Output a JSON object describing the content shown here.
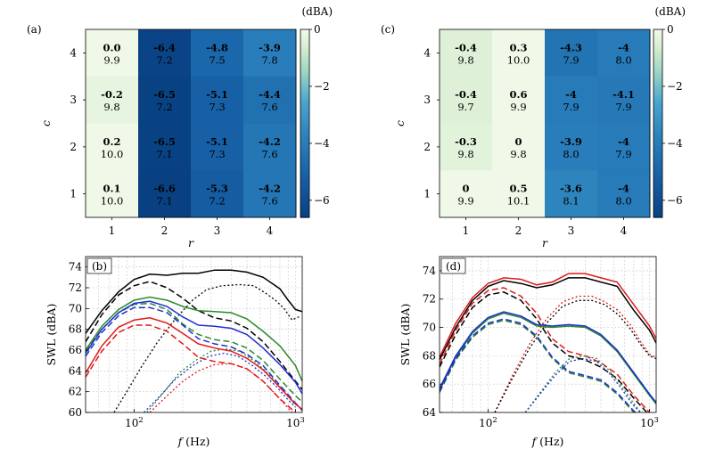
{
  "chart_data": [
    {
      "panel": "(a)",
      "type": "heatmap",
      "xlabel": "r",
      "ylabel": "c",
      "x": [
        1,
        2,
        3,
        4
      ],
      "y": [
        4,
        3,
        2,
        1
      ],
      "unit_label": "(dBA)",
      "colorbar": {
        "ticks": [
          0,
          -2,
          -4,
          -6
        ],
        "range": [
          -6.6,
          0
        ]
      },
      "values": [
        [
          0.0,
          -6.4,
          -4.8,
          -3.9
        ],
        [
          -0.2,
          -6.5,
          -5.1,
          -4.4
        ],
        [
          0.2,
          -6.5,
          -5.1,
          -4.2
        ],
        [
          0.1,
          -6.6,
          -5.3,
          -4.2
        ]
      ],
      "value_labels": [
        [
          "0.0",
          "-6.4",
          "-4.8",
          "-3.9"
        ],
        [
          "-0.2",
          "-6.5",
          "-5.1",
          "-4.4"
        ],
        [
          "0.2",
          "-6.5",
          "-5.1",
          "-4.2"
        ],
        [
          "0.1",
          "-6.6",
          "-5.3",
          "-4.2"
        ]
      ],
      "sub_labels": [
        [
          "9.9",
          "7.2",
          "7.5",
          "7.8"
        ],
        [
          "9.8",
          "7.2",
          "7.3",
          "7.6"
        ],
        [
          "10.0",
          "7.1",
          "7.3",
          "7.6"
        ],
        [
          "10.0",
          "7.1",
          "7.2",
          "7.6"
        ]
      ]
    },
    {
      "panel": "(c)",
      "type": "heatmap",
      "xlabel": "r",
      "ylabel": "c",
      "x": [
        1,
        2,
        3,
        4
      ],
      "y": [
        4,
        3,
        2,
        1
      ],
      "unit_label": "(dBA)",
      "colorbar": {
        "ticks": [
          0,
          -2,
          -4,
          -6
        ],
        "range": [
          -6.6,
          0
        ]
      },
      "values": [
        [
          -0.4,
          0.3,
          -4.3,
          -4
        ],
        [
          -0.4,
          0.6,
          -4,
          -4.1
        ],
        [
          -0.3,
          0,
          -3.9,
          -4
        ],
        [
          0,
          0.5,
          -3.6,
          -4
        ]
      ],
      "value_labels": [
        [
          "-0.4",
          "0.3",
          "-4.3",
          "-4"
        ],
        [
          "-0.4",
          "0.6",
          "-4",
          "-4.1"
        ],
        [
          "-0.3",
          "0",
          "-3.9",
          "-4"
        ],
        [
          "0",
          "0.5",
          "-3.6",
          "-4"
        ]
      ],
      "sub_labels": [
        [
          "9.8",
          "10.0",
          "7.9",
          "8.0"
        ],
        [
          "9.7",
          "9.9",
          "7.9",
          "7.9"
        ],
        [
          "9.8",
          "9.8",
          "8.0",
          "7.9"
        ],
        [
          "9.9",
          "10.1",
          "8.1",
          "8.0"
        ]
      ]
    },
    {
      "panel": "(b)",
      "type": "line",
      "xlabel": "f (Hz)",
      "ylabel": "SWL (dBA)",
      "xscale": "log",
      "xlim": [
        50,
        1100
      ],
      "ylim": [
        60,
        75
      ],
      "xticks": [
        "10^2",
        "10^3"
      ],
      "yticks": [
        60,
        62,
        64,
        66,
        68,
        70,
        72,
        74
      ],
      "grid": true,
      "series": [
        {
          "color": "#000000",
          "dash": "solid",
          "x": [
            50,
            63,
            80,
            100,
            125,
            160,
            200,
            250,
            315,
            400,
            500,
            630,
            800,
            900,
            1000,
            1100
          ],
          "y": [
            67.6,
            69.8,
            71.6,
            72.8,
            73.3,
            73.2,
            73.4,
            73.4,
            73.7,
            73.7,
            73.5,
            73.0,
            71.9,
            70.8,
            69.9,
            69.7
          ]
        },
        {
          "color": "#000000",
          "dash": "dashed",
          "x": [
            50,
            63,
            80,
            100,
            125,
            160,
            200,
            250,
            315,
            400,
            500,
            630,
            800,
            1000,
            1100
          ],
          "y": [
            66.8,
            69.4,
            71.3,
            72.2,
            72.6,
            72.0,
            71.0,
            69.8,
            69.1,
            68.8,
            68.1,
            66.8,
            64.9,
            63.0,
            62.2
          ]
        },
        {
          "color": "#000000",
          "dash": "dotted",
          "x": [
            75,
            90,
            110,
            140,
            180,
            230,
            280,
            350,
            450,
            550,
            650,
            750,
            850,
            950,
            1050
          ],
          "y": [
            60.0,
            62.0,
            64.3,
            66.8,
            69.0,
            70.8,
            71.8,
            72.2,
            72.3,
            72.2,
            71.5,
            70.8,
            70.0,
            68.9,
            69.2
          ]
        },
        {
          "color": "#2a8a2a",
          "dash": "solid",
          "x": [
            50,
            63,
            80,
            100,
            125,
            160,
            200,
            250,
            315,
            400,
            500,
            630,
            800,
            1000,
            1100
          ],
          "y": [
            66.0,
            68.3,
            69.9,
            70.8,
            71.1,
            70.8,
            70.2,
            69.8,
            69.7,
            69.6,
            69.0,
            67.8,
            66.4,
            64.5,
            63.0
          ]
        },
        {
          "color": "#2a8a2a",
          "dash": "dashed",
          "x": [
            50,
            63,
            80,
            100,
            125,
            160,
            200,
            250,
            315,
            400,
            500,
            630,
            800,
            1000,
            1100
          ],
          "y": [
            65.9,
            68.0,
            69.6,
            70.4,
            70.5,
            69.9,
            68.5,
            67.5,
            67.0,
            66.8,
            66.2,
            65.0,
            63.2,
            61.6,
            61.0
          ]
        },
        {
          "color": "#2a8a2a",
          "dash": "dotted",
          "x": [
            120,
            150,
            190,
            240,
            300,
            370,
            450,
            550,
            650,
            750,
            900,
            1000
          ],
          "y": [
            60.0,
            61.8,
            63.8,
            65.0,
            65.9,
            66.1,
            65.9,
            65.0,
            64.0,
            63.0,
            61.5,
            60.7
          ]
        },
        {
          "color": "#1f2fd0",
          "dash": "solid",
          "x": [
            50,
            63,
            80,
            100,
            125,
            160,
            200,
            250,
            315,
            400,
            500,
            630,
            800,
            1000,
            1100
          ],
          "y": [
            65.7,
            68.0,
            69.6,
            70.5,
            70.7,
            70.2,
            69.2,
            68.4,
            68.3,
            68.1,
            67.5,
            66.2,
            64.6,
            62.9,
            61.8
          ]
        },
        {
          "color": "#1f2fd0",
          "dash": "dashed",
          "x": [
            50,
            63,
            80,
            100,
            125,
            160,
            200,
            250,
            315,
            400,
            500,
            630,
            800,
            1000,
            1100
          ],
          "y": [
            65.4,
            67.7,
            69.3,
            70.1,
            70.1,
            69.6,
            68.4,
            67.1,
            66.6,
            66.3,
            65.6,
            64.5,
            62.6,
            60.9,
            60.2
          ]
        },
        {
          "color": "#1f2fd0",
          "dash": "dotted",
          "x": [
            115,
            145,
            180,
            230,
            290,
            360,
            440,
            530,
            640,
            760,
            900,
            1000
          ],
          "y": [
            60.0,
            61.6,
            63.2,
            64.5,
            65.4,
            65.7,
            65.4,
            64.6,
            63.6,
            62.5,
            61.2,
            60.5
          ]
        },
        {
          "color": "#e01a1a",
          "dash": "solid",
          "x": [
            50,
            63,
            80,
            100,
            125,
            160,
            200,
            250,
            315,
            400,
            500,
            630,
            800,
            1000,
            1100
          ],
          "y": [
            63.8,
            66.4,
            68.2,
            68.9,
            69.1,
            68.6,
            67.6,
            66.6,
            66.2,
            65.9,
            65.2,
            64.1,
            62.4,
            60.8,
            60.3
          ]
        },
        {
          "color": "#e01a1a",
          "dash": "dashed",
          "x": [
            50,
            63,
            80,
            100,
            125,
            160,
            200,
            250,
            315,
            400,
            500,
            630,
            800,
            1000
          ],
          "y": [
            63.4,
            65.9,
            67.7,
            68.4,
            68.4,
            67.8,
            66.6,
            65.3,
            64.9,
            64.7,
            64.2,
            63.0,
            61.3,
            60.0
          ]
        },
        {
          "color": "#e01a1a",
          "dash": "dotted",
          "x": [
            125,
            160,
            200,
            250,
            315,
            400,
            500,
            630,
            800,
            950
          ],
          "y": [
            60.0,
            61.6,
            63.0,
            64.0,
            64.6,
            64.7,
            64.2,
            63.0,
            61.3,
            60.0
          ]
        }
      ]
    },
    {
      "panel": "(d)",
      "type": "line",
      "xlabel": "f (Hz)",
      "ylabel": "SWL (dBA)",
      "xscale": "log",
      "xlim": [
        50,
        1100
      ],
      "ylim": [
        64,
        75
      ],
      "xticks": [
        "10^2",
        "10^3"
      ],
      "yticks": [
        64,
        66,
        68,
        70,
        72,
        74
      ],
      "grid": true,
      "series": [
        {
          "color": "#e01a1a",
          "dash": "solid",
          "x": [
            50,
            63,
            80,
            100,
            125,
            160,
            200,
            250,
            315,
            400,
            500,
            630,
            800,
            1000,
            1100
          ],
          "y": [
            67.9,
            70.3,
            72.1,
            73.1,
            73.5,
            73.4,
            73.0,
            73.2,
            73.8,
            73.8,
            73.5,
            73.2,
            71.6,
            70.1,
            69.2
          ]
        },
        {
          "color": "#000000",
          "dash": "solid",
          "x": [
            50,
            63,
            80,
            100,
            125,
            160,
            200,
            250,
            315,
            400,
            500,
            630,
            800,
            1000,
            1100
          ],
          "y": [
            67.7,
            70.0,
            71.9,
            72.9,
            73.3,
            73.1,
            72.8,
            73.0,
            73.5,
            73.5,
            73.2,
            72.9,
            71.2,
            69.8,
            68.9
          ]
        },
        {
          "color": "#e01a1a",
          "dash": "dashed",
          "x": [
            50,
            63,
            80,
            100,
            125,
            160,
            200,
            250,
            315,
            400,
            500,
            630,
            800,
            1000
          ],
          "y": [
            67.4,
            69.8,
            71.7,
            72.6,
            72.8,
            72.2,
            71.0,
            69.2,
            68.3,
            68.0,
            67.5,
            66.7,
            65.2,
            64.0
          ]
        },
        {
          "color": "#000000",
          "dash": "dashed",
          "x": [
            50,
            63,
            80,
            100,
            125,
            160,
            200,
            250,
            315,
            400,
            500,
            630,
            800,
            1000
          ],
          "y": [
            67.2,
            69.5,
            71.4,
            72.3,
            72.5,
            71.9,
            70.6,
            68.9,
            68.0,
            67.7,
            67.2,
            66.4,
            65.0,
            63.8
          ]
        },
        {
          "color": "#e01a1a",
          "dash": "dotted",
          "x": [
            110,
            140,
            180,
            230,
            290,
            360,
            440,
            530,
            640,
            760,
            880,
            1000,
            1100
          ],
          "y": [
            64.0,
            66.5,
            68.8,
            70.6,
            71.8,
            72.2,
            72.2,
            71.8,
            71.2,
            70.2,
            69.0,
            68.1,
            67.9
          ]
        },
        {
          "color": "#000000",
          "dash": "dotted",
          "x": [
            110,
            140,
            180,
            230,
            290,
            360,
            440,
            530,
            640,
            760,
            880,
            1000,
            1100
          ],
          "y": [
            64.0,
            66.3,
            68.5,
            70.3,
            71.5,
            71.9,
            71.9,
            71.6,
            70.9,
            69.9,
            68.8,
            68.0,
            67.8
          ]
        },
        {
          "color": "#2a8a2a",
          "dash": "solid",
          "x": [
            50,
            63,
            80,
            100,
            125,
            160,
            200,
            250,
            315,
            400,
            500,
            630,
            800,
            1000,
            1100
          ],
          "y": [
            65.6,
            67.9,
            69.6,
            70.6,
            71.0,
            70.7,
            70.1,
            70.0,
            70.1,
            70.0,
            69.4,
            68.3,
            66.7,
            65.2,
            64.6
          ]
        },
        {
          "color": "#1f2fd0",
          "dash": "solid",
          "x": [
            50,
            63,
            80,
            100,
            125,
            160,
            200,
            250,
            315,
            400,
            500,
            630,
            800,
            1000,
            1100
          ],
          "y": [
            65.7,
            68.0,
            69.7,
            70.7,
            71.1,
            70.8,
            70.2,
            70.1,
            70.2,
            70.1,
            69.5,
            68.4,
            66.8,
            65.3,
            64.7
          ]
        },
        {
          "color": "#2a8a2a",
          "dash": "dashed",
          "x": [
            50,
            63,
            80,
            100,
            125,
            160,
            200,
            250,
            315,
            400,
            500,
            630,
            800,
            1000
          ],
          "y": [
            65.4,
            67.7,
            69.3,
            70.2,
            70.5,
            70.2,
            69.3,
            67.8,
            66.8,
            66.5,
            66.2,
            65.3,
            64.0,
            63.0
          ]
        },
        {
          "color": "#1f2fd0",
          "dash": "dashed",
          "x": [
            50,
            63,
            80,
            100,
            125,
            160,
            200,
            250,
            315,
            400,
            500,
            630,
            800,
            1000
          ],
          "y": [
            65.5,
            67.8,
            69.4,
            70.3,
            70.6,
            70.3,
            69.4,
            67.9,
            66.9,
            66.6,
            66.3,
            65.4,
            64.1,
            63.1
          ]
        },
        {
          "color": "#2a8a2a",
          "dash": "dotted",
          "x": [
            170,
            210,
            260,
            320,
            390,
            470,
            560,
            660,
            780,
            880
          ],
          "y": [
            64.0,
            65.4,
            66.8,
            67.8,
            68.0,
            67.8,
            67.0,
            66.0,
            64.8,
            64.0
          ]
        },
        {
          "color": "#1f2fd0",
          "dash": "dotted",
          "x": [
            170,
            210,
            260,
            320,
            390,
            470,
            560,
            660,
            780,
            880
          ],
          "y": [
            64.0,
            65.3,
            66.6,
            67.6,
            67.8,
            67.6,
            66.8,
            65.8,
            64.6,
            64.0
          ]
        }
      ]
    }
  ]
}
